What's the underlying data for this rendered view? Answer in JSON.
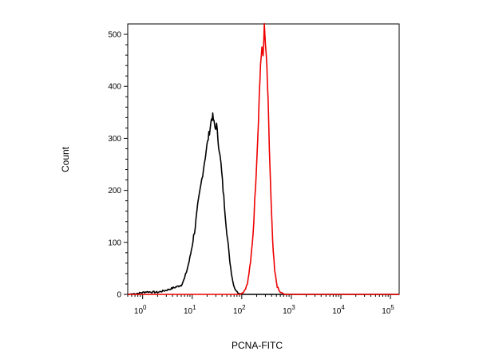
{
  "chart_data": {
    "type": "line",
    "xlabel": "PCNA-FITC",
    "ylabel": "Count",
    "x_scale": "log",
    "xlim": [
      0.5,
      150000
    ],
    "ylim": [
      0,
      520
    ],
    "x_ticks": [
      {
        "value": 1,
        "base": "10",
        "exp": "0"
      },
      {
        "value": 10,
        "base": "10",
        "exp": "1"
      },
      {
        "value": 100,
        "base": "10",
        "exp": "2"
      },
      {
        "value": 1000,
        "base": "10",
        "exp": "3"
      },
      {
        "value": 10000,
        "base": "10",
        "exp": "4"
      },
      {
        "value": 100000,
        "base": "10",
        "exp": "5"
      }
    ],
    "y_ticks": [
      "0",
      "100",
      "200",
      "300",
      "400",
      "500"
    ],
    "grid": false,
    "series": [
      {
        "color": "#000000",
        "x": [
          0.5,
          0.8,
          1.2,
          2.0,
          3.0,
          4.0,
          5.0,
          6.0,
          7.0,
          8.0,
          9.0,
          10.0,
          11.5,
          13.0,
          15.0,
          17.0,
          19.0,
          21.0,
          23.0,
          24.5,
          26.0,
          27.5,
          29.0,
          31.0,
          33.0,
          35.0,
          38.0,
          42.0,
          46.0,
          50.0,
          55.0,
          60.0,
          66.0,
          72.0,
          80.0,
          90.0,
          100.0,
          150000
        ],
        "y": [
          0,
          2,
          5,
          4,
          8,
          12,
          15,
          18,
          30,
          50,
          70,
          95,
          130,
          170,
          210,
          245,
          275,
          300,
          320,
          338,
          342,
          330,
          320,
          325,
          300,
          280,
          250,
          200,
          160,
          120,
          80,
          50,
          25,
          12,
          5,
          2,
          0,
          0
        ]
      },
      {
        "color": "#ee0000",
        "x": [
          0.5,
          90,
          110,
          130,
          150,
          170,
          190,
          210,
          225,
          240,
          255,
          270,
          285,
          300,
          320,
          340,
          360,
          390,
          420,
          460,
          520,
          580,
          650,
          750,
          150000
        ],
        "y": [
          0,
          0,
          5,
          20,
          60,
          120,
          210,
          300,
          380,
          445,
          470,
          460,
          515,
          480,
          440,
          370,
          280,
          180,
          100,
          45,
          15,
          5,
          2,
          0,
          0
        ]
      }
    ]
  }
}
